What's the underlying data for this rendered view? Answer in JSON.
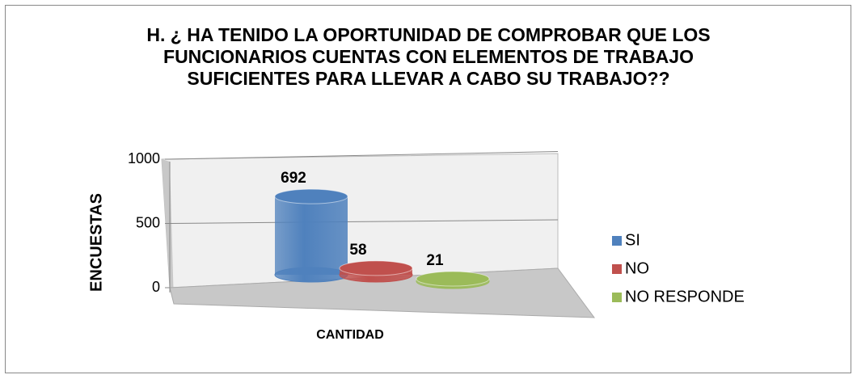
{
  "chart_data": {
    "type": "cylinder3d",
    "title": "H.   ¿ HA TENIDO LA OPORTUNIDAD DE COMPROBAR QUE LOS FUNCIONARIOS CUENTAS CON ELEMENTOS DE TRABAJO SUFICIENTES PARA LLEVAR A CABO SU TRABAJO??",
    "y_label": "ENCUESTAS",
    "x_label": "CANTIDAD",
    "categories": [
      "CANTIDAD"
    ],
    "series": [
      {
        "name": "SI",
        "color": "#4f81bd",
        "values": [
          692
        ]
      },
      {
        "name": "NO",
        "color": "#c0504d",
        "values": [
          58
        ]
      },
      {
        "name": "NO RESPONDE",
        "color": "#9bbb59",
        "values": [
          21
        ]
      }
    ],
    "ylim": [
      0,
      1000
    ],
    "yticks": [
      0,
      500,
      1000
    ],
    "grid": true,
    "legend": "right"
  }
}
